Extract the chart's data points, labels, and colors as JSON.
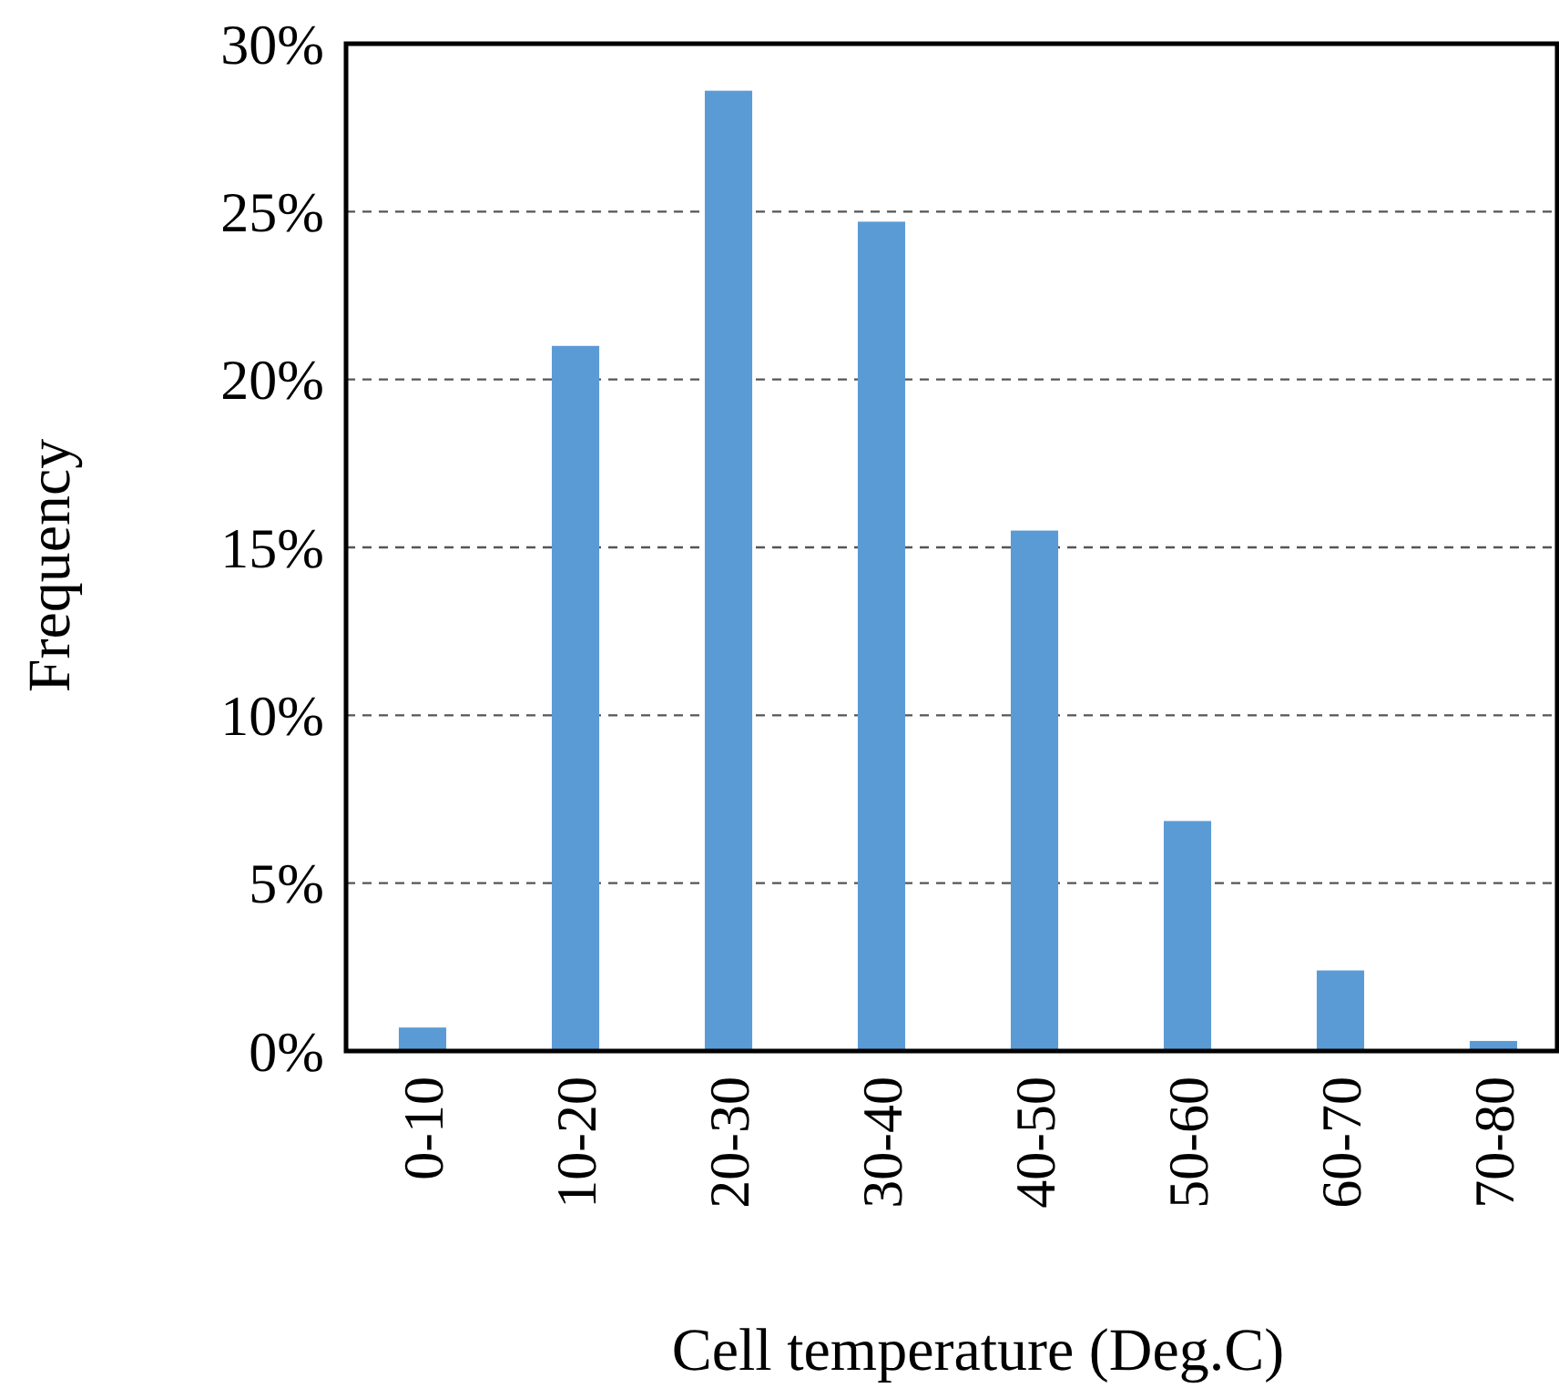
{
  "chart_data": {
    "type": "bar",
    "xlabel": "Cell temperature (Deg.C)",
    "ylabel": "Frequency",
    "categories": [
      "0-10",
      "10-20",
      "20-30",
      "30-40",
      "40-50",
      "50-60",
      "60-70",
      "70-80"
    ],
    "values": [
      0.7,
      21.0,
      28.6,
      24.7,
      15.5,
      6.85,
      2.4,
      0.3
    ],
    "color": "#5b9bd5",
    "ylim": [
      0,
      30
    ],
    "yticks": [
      {
        "value": 0,
        "label": "0%"
      },
      {
        "value": 5,
        "label": "5%"
      },
      {
        "value": 10,
        "label": "10%"
      },
      {
        "value": 15,
        "label": "15%"
      },
      {
        "value": 20,
        "label": "20%"
      },
      {
        "value": 25,
        "label": "25%"
      },
      {
        "value": 30,
        "label": "30%"
      }
    ],
    "grid": "y"
  }
}
